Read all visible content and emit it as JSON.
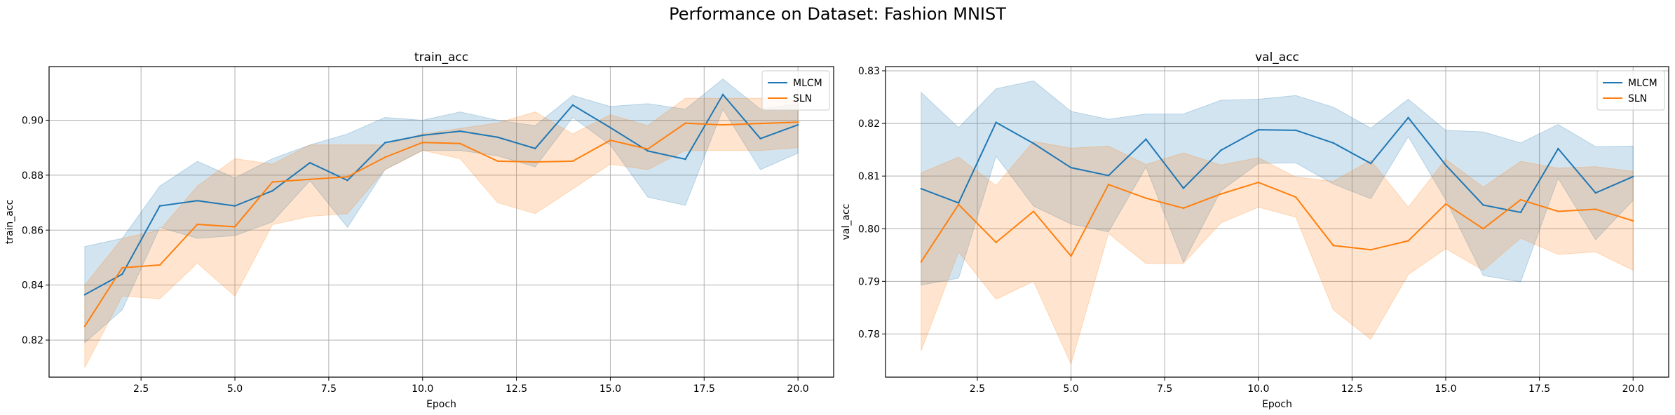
{
  "suptitle": "Performance on Dataset: Fashion MNIST",
  "colors": {
    "MLCM": "#1f77b4",
    "SLN": "#ff7f0e"
  },
  "chart_data": [
    {
      "type": "line",
      "title": "train_acc",
      "xlabel": "Epoch",
      "ylabel": "train_acc",
      "xlim": [
        0.05,
        20.95
      ],
      "ylim": [
        0.8065,
        0.9195
      ],
      "xticks": [
        2.5,
        5.0,
        7.5,
        10.0,
        12.5,
        15.0,
        17.5,
        20.0
      ],
      "xtick_labels": [
        "2.5",
        "5.0",
        "7.5",
        "10.0",
        "12.5",
        "15.0",
        "17.5",
        "20.0"
      ],
      "yticks": [
        0.82,
        0.84,
        0.86,
        0.88,
        0.9
      ],
      "ytick_labels": [
        "0.82",
        "0.84",
        "0.86",
        "0.88",
        "0.90"
      ],
      "grid": true,
      "legend": "top-right",
      "x": [
        1,
        2,
        3,
        4,
        5,
        6,
        7,
        8,
        9,
        10,
        11,
        12,
        13,
        14,
        15,
        16,
        17,
        18,
        19,
        20
      ],
      "series": [
        {
          "name": "MLCM",
          "values": [
            0.8365,
            0.844,
            0.8688,
            0.8707,
            0.8688,
            0.8743,
            0.8845,
            0.8781,
            0.8918,
            0.8945,
            0.896,
            0.8938,
            0.8897,
            0.9055,
            0.8973,
            0.8888,
            0.8858,
            0.9093,
            0.8933,
            0.8983
          ],
          "lower": [
            0.819,
            0.831,
            0.861,
            0.857,
            0.858,
            0.863,
            0.878,
            0.861,
            0.882,
            0.889,
            0.889,
            0.887,
            0.883,
            0.901,
            0.891,
            0.872,
            0.869,
            0.904,
            0.882,
            0.888
          ],
          "upper": [
            0.854,
            0.857,
            0.876,
            0.885,
            0.879,
            0.886,
            0.891,
            0.895,
            0.901,
            0.9,
            0.903,
            0.9,
            0.898,
            0.909,
            0.905,
            0.906,
            0.904,
            0.915,
            0.904,
            0.906
          ]
        },
        {
          "name": "SLN",
          "values": [
            0.825,
            0.8463,
            0.8473,
            0.8621,
            0.8612,
            0.8775,
            0.8785,
            0.8794,
            0.8865,
            0.8919,
            0.8915,
            0.8851,
            0.8848,
            0.8851,
            0.8927,
            0.8895,
            0.8989,
            0.8983,
            0.8988,
            0.8993
          ],
          "lower": [
            0.81,
            0.836,
            0.835,
            0.848,
            0.836,
            0.862,
            0.865,
            0.866,
            0.882,
            0.889,
            0.886,
            0.87,
            0.866,
            0.875,
            0.884,
            0.882,
            0.889,
            0.889,
            0.889,
            0.89
          ],
          "upper": [
            0.84,
            0.857,
            0.86,
            0.876,
            0.886,
            0.884,
            0.891,
            0.891,
            0.891,
            0.895,
            0.897,
            0.899,
            0.903,
            0.895,
            0.902,
            0.898,
            0.908,
            0.908,
            0.908,
            0.907
          ]
        }
      ]
    },
    {
      "type": "line",
      "title": "val_acc",
      "xlabel": "Epoch",
      "ylabel": "val_acc",
      "xlim": [
        0.05,
        20.95
      ],
      "ylim": [
        0.7718,
        0.8308
      ],
      "xticks": [
        2.5,
        5.0,
        7.5,
        10.0,
        12.5,
        15.0,
        17.5,
        20.0
      ],
      "xtick_labels": [
        "2.5",
        "5.0",
        "7.5",
        "10.0",
        "12.5",
        "15.0",
        "17.5",
        "20.0"
      ],
      "yticks": [
        0.78,
        0.79,
        0.8,
        0.81,
        0.82,
        0.83
      ],
      "ytick_labels": [
        "0.78",
        "0.79",
        "0.80",
        "0.81",
        "0.82",
        "0.83"
      ],
      "grid": true,
      "legend": "top-right",
      "x": [
        1,
        2,
        3,
        4,
        5,
        6,
        7,
        8,
        9,
        10,
        11,
        12,
        13,
        14,
        15,
        16,
        17,
        18,
        19,
        20
      ],
      "series": [
        {
          "name": "MLCM",
          "values": [
            0.8076,
            0.8049,
            0.8202,
            0.8162,
            0.8116,
            0.8101,
            0.817,
            0.8077,
            0.8149,
            0.8188,
            0.8187,
            0.8163,
            0.8124,
            0.8211,
            0.8121,
            0.8045,
            0.8031,
            0.8152,
            0.8068,
            0.8099
          ],
          "lower": [
            0.7893,
            0.7906,
            0.8138,
            0.8043,
            0.8009,
            0.7994,
            0.8117,
            0.7936,
            0.8072,
            0.8124,
            0.8125,
            0.8085,
            0.8057,
            0.8175,
            0.8055,
            0.7911,
            0.7899,
            0.8096,
            0.7979,
            0.8054
          ],
          "upper": [
            0.8259,
            0.8192,
            0.8266,
            0.8281,
            0.8223,
            0.8208,
            0.8218,
            0.8218,
            0.8244,
            0.8246,
            0.8253,
            0.8231,
            0.8191,
            0.8246,
            0.8187,
            0.8184,
            0.8163,
            0.8198,
            0.8156,
            0.8157
          ]
        },
        {
          "name": "SLN",
          "values": [
            0.7937,
            0.8046,
            0.7974,
            0.8033,
            0.7948,
            0.8084,
            0.8058,
            0.8039,
            0.8066,
            0.8088,
            0.806,
            0.7968,
            0.796,
            0.7977,
            0.8047,
            0.8,
            0.8055,
            0.8033,
            0.8037,
            0.8015
          ],
          "lower": [
            0.7768,
            0.7956,
            0.7866,
            0.79,
            0.7743,
            0.7991,
            0.7934,
            0.7934,
            0.8011,
            0.8041,
            0.8022,
            0.7846,
            0.779,
            0.7913,
            0.7962,
            0.7921,
            0.7982,
            0.7951,
            0.7956,
            0.7921
          ],
          "upper": [
            0.8106,
            0.8136,
            0.8082,
            0.8166,
            0.8153,
            0.8157,
            0.8122,
            0.8144,
            0.8121,
            0.8135,
            0.8098,
            0.809,
            0.813,
            0.8041,
            0.8132,
            0.8079,
            0.8128,
            0.8115,
            0.8118,
            0.8109
          ]
        }
      ]
    }
  ]
}
